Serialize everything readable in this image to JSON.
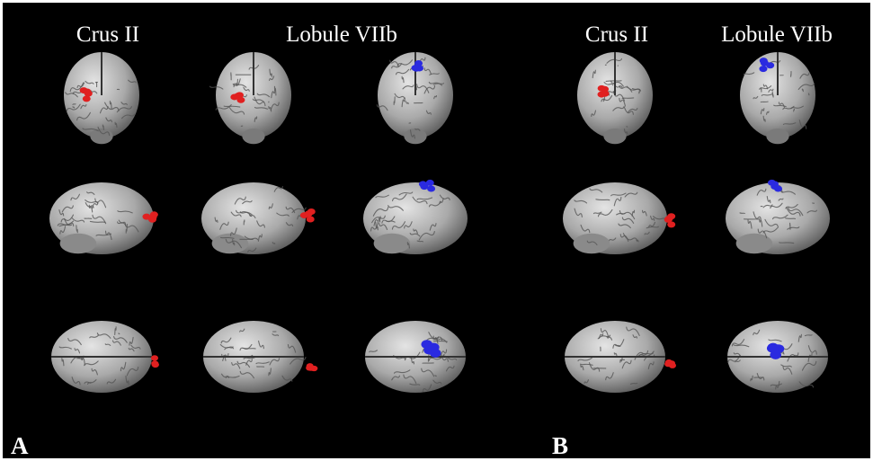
{
  "panels": [
    {
      "label": "A",
      "columns": [
        "Crus II",
        "Lobule VIIb"
      ]
    },
    {
      "label": "B",
      "columns": [
        "Crus II",
        "Lobule VIIb"
      ]
    }
  ]
}
